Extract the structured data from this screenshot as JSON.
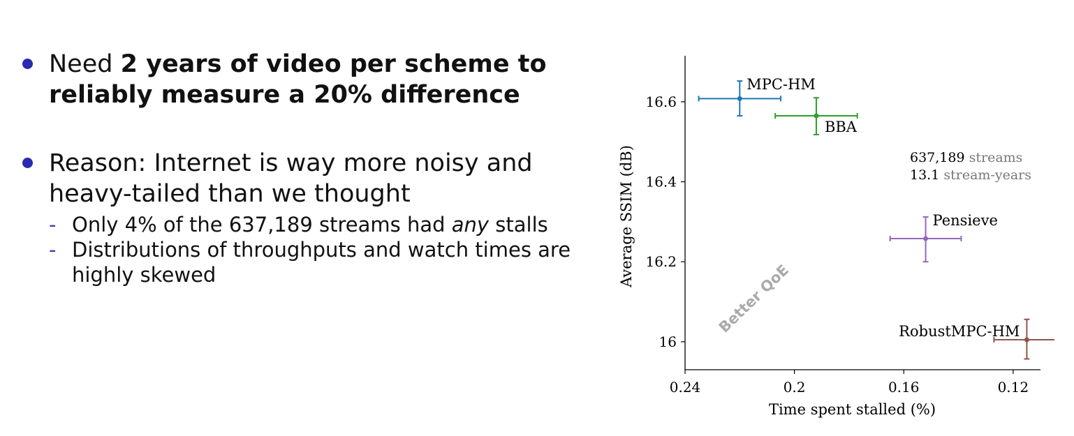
{
  "bullets": [
    {
      "prefix": "Need ",
      "bold": "2 years of video per scheme to reliably measure a 20% difference"
    },
    {
      "text": "Reason: Internet is way more noisy and heavy-tailed than we thought",
      "subs": [
        {
          "before": "Only 4% of the 637,189 streams had ",
          "italic": "any",
          "after": " stalls"
        },
        {
          "text": "Distributions of throughputs and watch times are highly skewed"
        }
      ]
    }
  ],
  "chart_data": {
    "type": "scatter",
    "xlabel": "Time spent stalled (%)",
    "ylabel": "Average SSIM (dB)",
    "xlim": [
      0.24,
      0.11
    ],
    "ylim": [
      15.93,
      16.715
    ],
    "xticks": [
      {
        "value": 0.24,
        "label": "0.24"
      },
      {
        "value": 0.2,
        "label": "0.2"
      },
      {
        "value": 0.16,
        "label": "0.16"
      },
      {
        "value": 0.12,
        "label": "0.12"
      }
    ],
    "yticks": [
      {
        "value": 16.6,
        "label": "16.6"
      },
      {
        "value": 16.4,
        "label": "16.4"
      },
      {
        "value": 16.2,
        "label": "16.2"
      },
      {
        "value": 16.0,
        "label": "16"
      }
    ],
    "series": [
      {
        "name": "MPC-HM",
        "x": 0.22,
        "y": 16.608,
        "xerr": [
          0.235,
          0.205
        ],
        "yerr": [
          16.565,
          16.652
        ],
        "color": "#1f77b4",
        "label_pos": "above-right"
      },
      {
        "name": "BBA",
        "x": 0.192,
        "y": 16.565,
        "xerr": [
          0.207,
          0.177
        ],
        "yerr": [
          16.518,
          16.61
        ],
        "color": "#2ca02c",
        "label_pos": "below-right"
      },
      {
        "name": "Pensieve",
        "x": 0.152,
        "y": 16.258,
        "xerr": [
          0.165,
          0.139
        ],
        "yerr": [
          16.2,
          16.312
        ],
        "color": "#9467bd",
        "label_pos": "above-right"
      },
      {
        "name": "RobustMPC-HM",
        "x": 0.115,
        "y": 16.005,
        "xerr": [
          0.127,
          0.103
        ],
        "yerr": [
          15.957,
          16.056
        ],
        "color": "#8c564b",
        "label_pos": "above-left"
      }
    ],
    "annotations": {
      "stats": [
        {
          "value": "637,189",
          "unit": "streams"
        },
        {
          "value": "13.1",
          "unit": "stream-years"
        }
      ],
      "arrow_label": "Better QoE"
    },
    "colors": {
      "axis": "#000000",
      "note": "#777777",
      "arrow_text": "#aaaaaa"
    }
  }
}
